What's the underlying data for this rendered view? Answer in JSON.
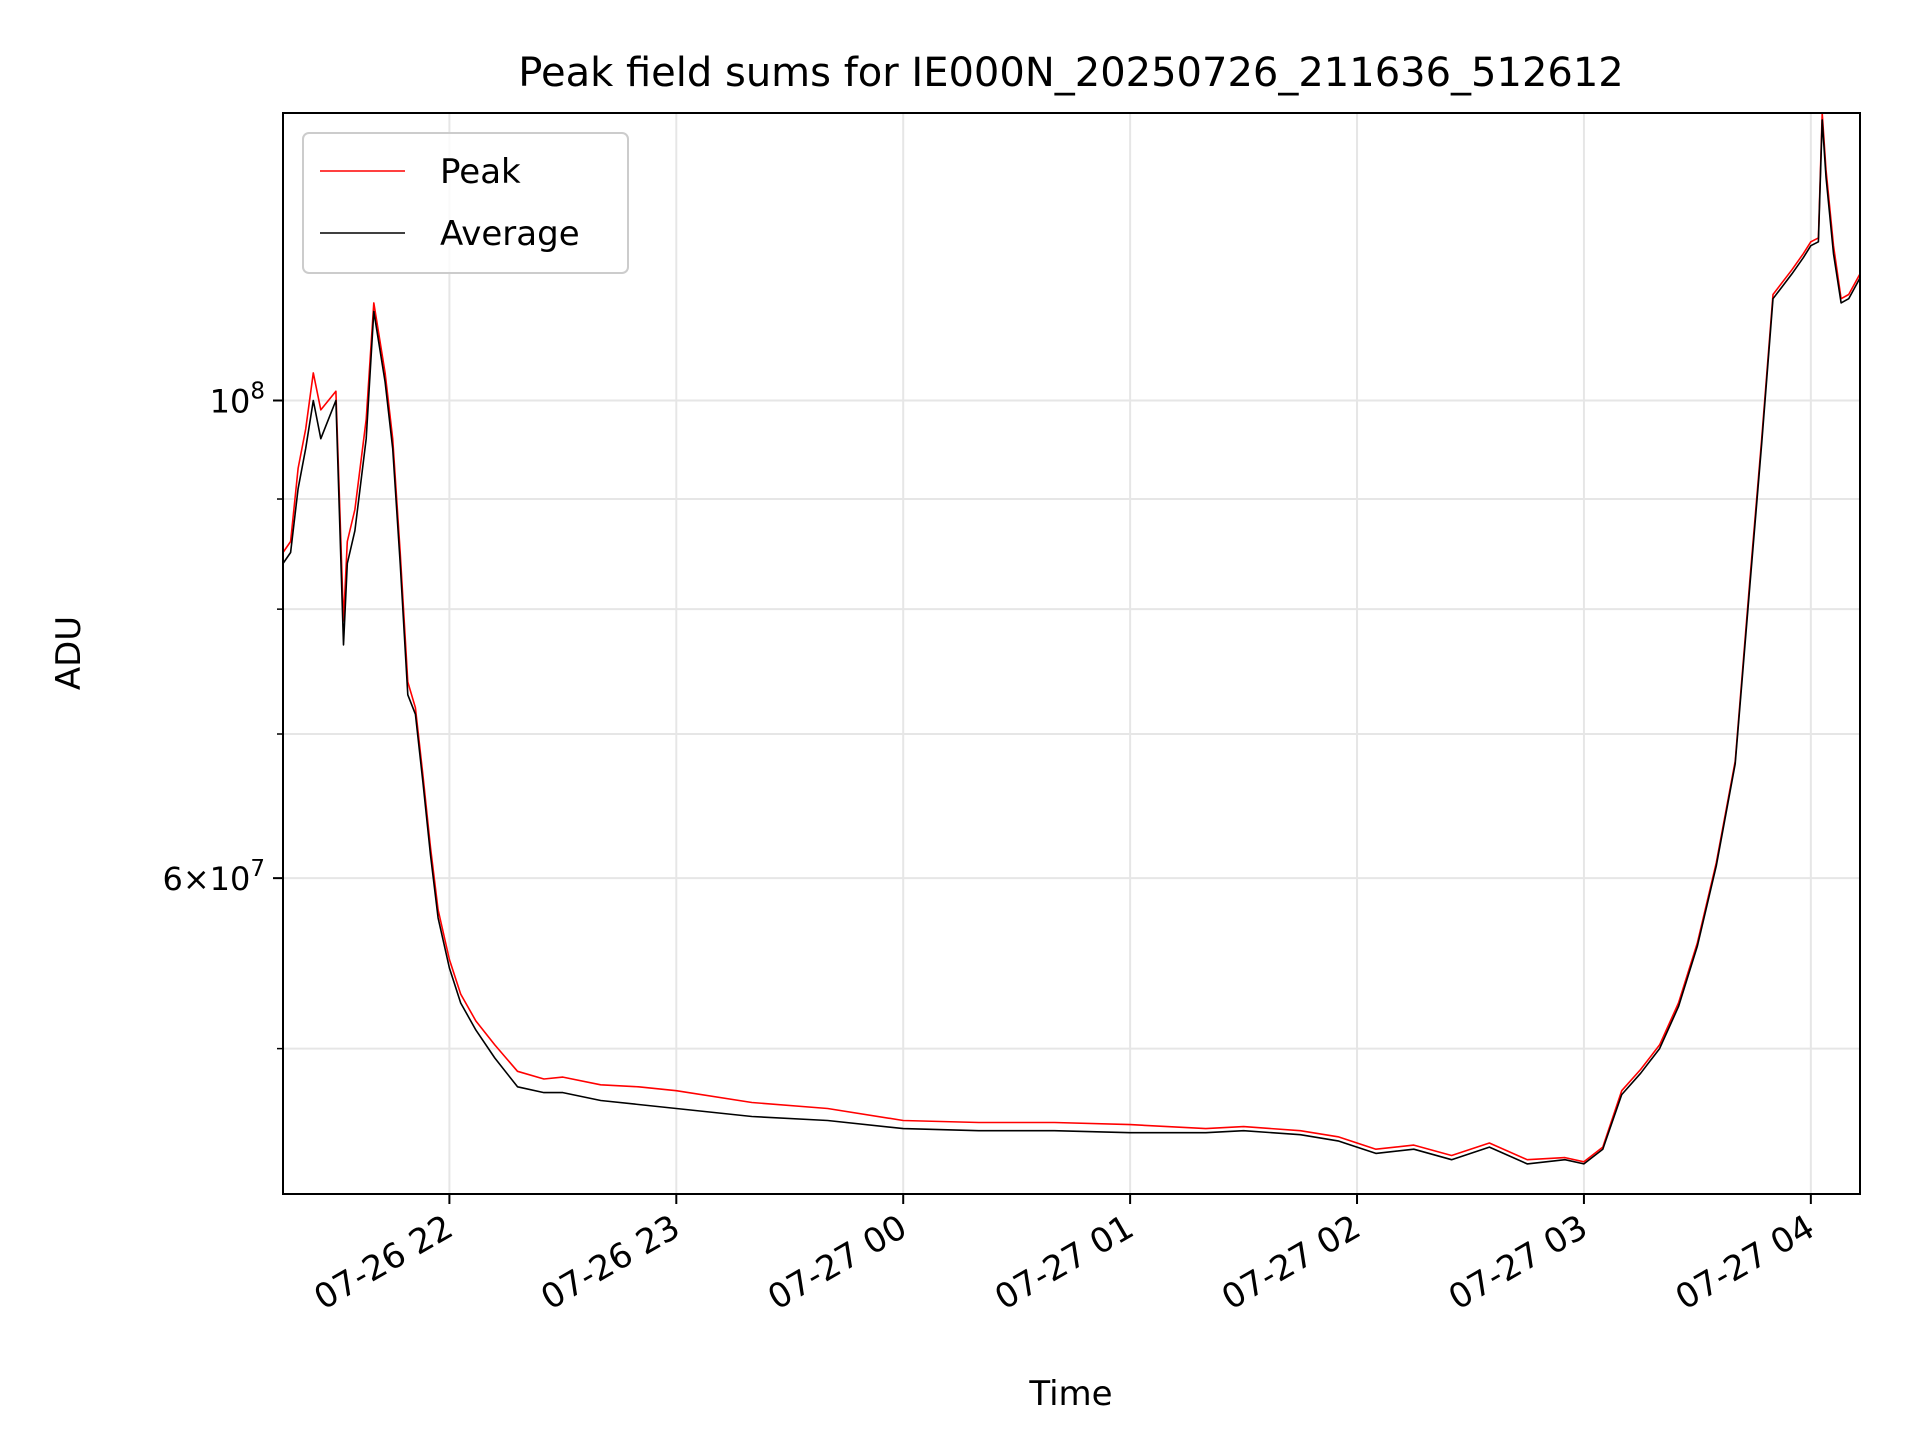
{
  "chart_data": {
    "type": "line",
    "title": "Peak field sums for IE000N_20250726_211636_512612",
    "xlabel": "Time",
    "ylabel": "ADU",
    "yscale": "log",
    "grid": true,
    "legend_position": "top-left",
    "xlim": [
      "2025-07-26 21:16",
      "2025-07-27 04:13"
    ],
    "ylim": [
      42800000,
      136000000
    ],
    "x_ticks": [
      {
        "label": "07-26 22",
        "value": "2025-07-26 22:00"
      },
      {
        "label": "07-26 23",
        "value": "2025-07-26 23:00"
      },
      {
        "label": "07-27 00",
        "value": "2025-07-27 00:00"
      },
      {
        "label": "07-27 01",
        "value": "2025-07-27 01:00"
      },
      {
        "label": "07-27 02",
        "value": "2025-07-27 02:00"
      },
      {
        "label": "07-27 03",
        "value": "2025-07-27 03:00"
      },
      {
        "label": "07-27 04",
        "value": "2025-07-27 04:00"
      }
    ],
    "y_major_ticks": [
      {
        "value": 100000000,
        "base": "10",
        "exp": "8"
      },
      {
        "value": 60000000,
        "mant": "6",
        "base": "10",
        "exp": "7"
      }
    ],
    "y_minor_grid": [
      50000000,
      70000000,
      80000000,
      90000000
    ],
    "series": [
      {
        "name": "Peak",
        "color": "#ff0000",
        "x": [
          "2025-07-26 21:16",
          "2025-07-26 21:18",
          "2025-07-26 21:20",
          "2025-07-26 21:22",
          "2025-07-26 21:24",
          "2025-07-26 21:26",
          "2025-07-26 21:28",
          "2025-07-26 21:30",
          "2025-07-26 21:32",
          "2025-07-26 21:33",
          "2025-07-26 21:35",
          "2025-07-26 21:38",
          "2025-07-26 21:40",
          "2025-07-26 21:43",
          "2025-07-26 21:45",
          "2025-07-26 21:47",
          "2025-07-26 21:49",
          "2025-07-26 21:51",
          "2025-07-26 21:53",
          "2025-07-26 21:55",
          "2025-07-26 21:57",
          "2025-07-26 22:00",
          "2025-07-26 22:03",
          "2025-07-26 22:07",
          "2025-07-26 22:12",
          "2025-07-26 22:18",
          "2025-07-26 22:25",
          "2025-07-26 22:30",
          "2025-07-26 22:40",
          "2025-07-26 22:50",
          "2025-07-26 23:00",
          "2025-07-26 23:20",
          "2025-07-26 23:40",
          "2025-07-27 00:00",
          "2025-07-27 00:20",
          "2025-07-27 00:40",
          "2025-07-27 01:00",
          "2025-07-27 01:20",
          "2025-07-27 01:30",
          "2025-07-27 01:45",
          "2025-07-27 01:55",
          "2025-07-27 02:05",
          "2025-07-27 02:15",
          "2025-07-27 02:25",
          "2025-07-27 02:35",
          "2025-07-27 02:45",
          "2025-07-27 02:55",
          "2025-07-27 03:00",
          "2025-07-27 03:05",
          "2025-07-27 03:10",
          "2025-07-27 03:15",
          "2025-07-27 03:20",
          "2025-07-27 03:25",
          "2025-07-27 03:30",
          "2025-07-27 03:35",
          "2025-07-27 03:40",
          "2025-07-27 03:44",
          "2025-07-27 03:47",
          "2025-07-27 03:50",
          "2025-07-27 03:55",
          "2025-07-27 03:58",
          "2025-07-27 04:00",
          "2025-07-27 04:02",
          "2025-07-27 04:03",
          "2025-07-27 04:04",
          "2025-07-27 04:06",
          "2025-07-27 04:08",
          "2025-07-27 04:10",
          "2025-07-27 04:13"
        ],
        "y": [
          85000000,
          86000000,
          93000000,
          97000000,
          103000000,
          99000000,
          100000000,
          101000000,
          79000000,
          86000000,
          89000000,
          98000000,
          111000000,
          103000000,
          96000000,
          85000000,
          74000000,
          72000000,
          67000000,
          62000000,
          58000000,
          55000000,
          53000000,
          51500000,
          50200000,
          48800000,
          48400000,
          48500000,
          48100000,
          48000000,
          47800000,
          47200000,
          46900000,
          46300000,
          46200000,
          46200000,
          46100000,
          45900000,
          46000000,
          45800000,
          45500000,
          44900000,
          45100000,
          44600000,
          45200000,
          44400000,
          44500000,
          44300000,
          45000000,
          47800000,
          48900000,
          50200000,
          52500000,
          56000000,
          61000000,
          68000000,
          83000000,
          96000000,
          112000000,
          115000000,
          117000000,
          118500000,
          119000000,
          136000000,
          128000000,
          118000000,
          111500000,
          112000000,
          114500000
        ]
      },
      {
        "name": "Average",
        "color": "#000000",
        "x": [
          "2025-07-26 21:16",
          "2025-07-26 21:18",
          "2025-07-26 21:20",
          "2025-07-26 21:22",
          "2025-07-26 21:24",
          "2025-07-26 21:26",
          "2025-07-26 21:28",
          "2025-07-26 21:30",
          "2025-07-26 21:32",
          "2025-07-26 21:33",
          "2025-07-26 21:35",
          "2025-07-26 21:38",
          "2025-07-26 21:40",
          "2025-07-26 21:43",
          "2025-07-26 21:45",
          "2025-07-26 21:47",
          "2025-07-26 21:49",
          "2025-07-26 21:51",
          "2025-07-26 21:53",
          "2025-07-26 21:55",
          "2025-07-26 21:57",
          "2025-07-26 22:00",
          "2025-07-26 22:03",
          "2025-07-26 22:07",
          "2025-07-26 22:12",
          "2025-07-26 22:18",
          "2025-07-26 22:25",
          "2025-07-26 22:30",
          "2025-07-26 22:40",
          "2025-07-26 22:50",
          "2025-07-26 23:00",
          "2025-07-26 23:20",
          "2025-07-26 23:40",
          "2025-07-27 00:00",
          "2025-07-27 00:20",
          "2025-07-27 00:40",
          "2025-07-27 01:00",
          "2025-07-27 01:20",
          "2025-07-27 01:30",
          "2025-07-27 01:45",
          "2025-07-27 01:55",
          "2025-07-27 02:05",
          "2025-07-27 02:15",
          "2025-07-27 02:25",
          "2025-07-27 02:35",
          "2025-07-27 02:45",
          "2025-07-27 02:55",
          "2025-07-27 03:00",
          "2025-07-27 03:05",
          "2025-07-27 03:10",
          "2025-07-27 03:15",
          "2025-07-27 03:20",
          "2025-07-27 03:25",
          "2025-07-27 03:30",
          "2025-07-27 03:35",
          "2025-07-27 03:40",
          "2025-07-27 03:44",
          "2025-07-27 03:47",
          "2025-07-27 03:50",
          "2025-07-27 03:55",
          "2025-07-27 03:58",
          "2025-07-27 04:00",
          "2025-07-27 04:02",
          "2025-07-27 04:03",
          "2025-07-27 04:04",
          "2025-07-27 04:06",
          "2025-07-27 04:08",
          "2025-07-27 04:10",
          "2025-07-27 04:13"
        ],
        "y": [
          84000000,
          85000000,
          91000000,
          95000000,
          100000000,
          96000000,
          98000000,
          100000000,
          77000000,
          84000000,
          87000000,
          96000000,
          110000000,
          102000000,
          95000000,
          84000000,
          73000000,
          71500000,
          66500000,
          61500000,
          57500000,
          54500000,
          52500000,
          51000000,
          49500000,
          48000000,
          47700000,
          47700000,
          47300000,
          47100000,
          46900000,
          46500000,
          46300000,
          45900000,
          45800000,
          45800000,
          45700000,
          45700000,
          45800000,
          45600000,
          45300000,
          44700000,
          44900000,
          44400000,
          45000000,
          44200000,
          44400000,
          44200000,
          44900000,
          47600000,
          48700000,
          50000000,
          52300000,
          55800000,
          60800000,
          67800000,
          82500000,
          95500000,
          111500000,
          114500000,
          116500000,
          118000000,
          118500000,
          135000000,
          127000000,
          117000000,
          111000000,
          111500000,
          114000000
        ]
      }
    ]
  }
}
